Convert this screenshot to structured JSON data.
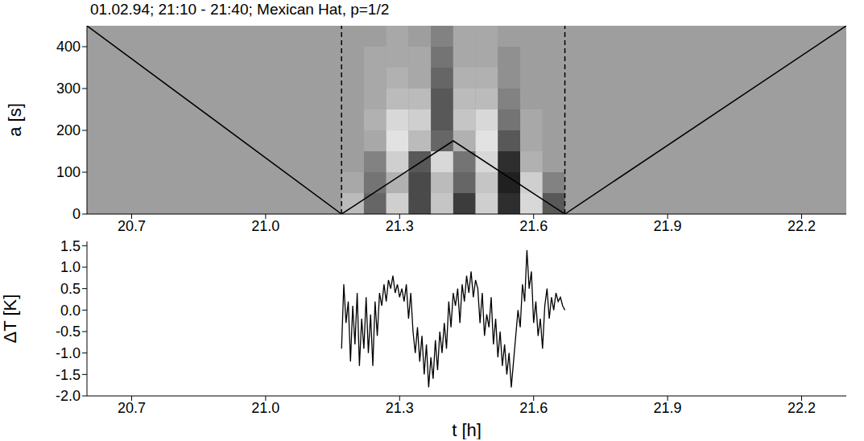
{
  "chart_data": [
    {
      "type": "heatmap",
      "title": "01.02.94; 21:10 - 21:40; Mexican Hat, p=1/2",
      "y_label": "a [s]",
      "xlim": [
        20.6,
        22.3
      ],
      "xticks": [
        20.7,
        {
          "value": 21,
          "label": "21.0"
        },
        21.3,
        21.6,
        21.9,
        22.2
      ],
      "ylim": [
        0,
        450
      ],
      "yticks": [
        0,
        100,
        200,
        300,
        400
      ],
      "x_edges": [
        21.17,
        21.22,
        21.27,
        21.32,
        21.37,
        21.42,
        21.47,
        21.52,
        21.57,
        21.62,
        21.67
      ],
      "y_edges": [
        0,
        50,
        100,
        150,
        200,
        250,
        300,
        350,
        400,
        450
      ],
      "cells": [
        [
          0.3,
          -0.4,
          0.5,
          -0.6,
          0.4,
          -0.7,
          0.5,
          -0.8,
          0.6,
          -0.5
        ],
        [
          0.1,
          -0.3,
          0.2,
          -0.6,
          0.3,
          -0.4,
          0.4,
          -0.9,
          0.5,
          -0.2
        ],
        [
          0.0,
          -0.2,
          0.5,
          -0.5,
          0.6,
          -0.3,
          0.6,
          -0.8,
          0.2,
          0.0
        ],
        [
          0.0,
          0.1,
          0.7,
          0.3,
          -0.4,
          0.2,
          0.7,
          -0.5,
          0.1,
          0.0
        ],
        [
          0.0,
          0.2,
          0.6,
          0.5,
          -0.5,
          0.4,
          0.6,
          -0.3,
          0.1,
          0.0
        ],
        [
          0.0,
          0.1,
          0.3,
          0.3,
          -0.5,
          0.3,
          0.3,
          -0.2,
          0.0,
          0.0
        ],
        [
          0.0,
          0.1,
          0.2,
          0.1,
          -0.4,
          0.2,
          0.2,
          -0.1,
          0.0,
          0.0
        ],
        [
          0.0,
          0.1,
          0.1,
          0.1,
          -0.3,
          0.1,
          0.1,
          -0.1,
          0.0,
          0.0
        ],
        [
          0.0,
          0.0,
          0.1,
          0.0,
          -0.2,
          0.1,
          0.1,
          0.0,
          0.0,
          0.0
        ]
      ],
      "zlim": [
        -1,
        1
      ],
      "lines": [
        {
          "x": [
            20.6,
            21.17,
            21.42,
            21.67,
            22.3
          ],
          "y": [
            450,
            0,
            175,
            0,
            450
          ],
          "color": "#000000",
          "line_style": "solid"
        },
        {
          "x": [
            21.17,
            21.17
          ],
          "y": [
            0,
            450
          ],
          "color": "#000000",
          "line_style": "dashed"
        },
        {
          "x": [
            21.67,
            21.67
          ],
          "y": [
            0,
            450
          ],
          "color": "#000000",
          "line_style": "dashed"
        }
      ]
    },
    {
      "type": "line",
      "x_label": "t [h]",
      "y_label": "ΔT [K]",
      "xlim": [
        20.6,
        22.3
      ],
      "xticks": [
        20.7,
        {
          "value": 21,
          "label": "21.0"
        },
        21.3,
        21.6,
        21.9,
        22.2
      ],
      "ylim": [
        -2,
        1.6
      ],
      "yticks": [
        {
          "value": -2,
          "label": "-2.0"
        },
        -1.5,
        {
          "value": -1,
          "label": "-1.0"
        },
        -0.5,
        {
          "value": 0,
          "label": "0.0"
        },
        0.5,
        {
          "value": 1,
          "label": "1.0"
        },
        1.5
      ],
      "color": "#000000",
      "x": [
        21.17,
        21.175,
        21.18,
        21.185,
        21.19,
        21.195,
        21.2,
        21.205,
        21.21,
        21.215,
        21.22,
        21.225,
        21.23,
        21.235,
        21.24,
        21.245,
        21.25,
        21.255,
        21.26,
        21.265,
        21.27,
        21.275,
        21.28,
        21.285,
        21.29,
        21.295,
        21.3,
        21.305,
        21.31,
        21.315,
        21.32,
        21.325,
        21.33,
        21.335,
        21.34,
        21.345,
        21.35,
        21.355,
        21.36,
        21.365,
        21.37,
        21.375,
        21.38,
        21.385,
        21.39,
        21.395,
        21.4,
        21.405,
        21.41,
        21.415,
        21.42,
        21.425,
        21.43,
        21.435,
        21.44,
        21.445,
        21.45,
        21.455,
        21.46,
        21.465,
        21.47,
        21.475,
        21.48,
        21.485,
        21.49,
        21.495,
        21.5,
        21.505,
        21.51,
        21.515,
        21.52,
        21.525,
        21.53,
        21.535,
        21.54,
        21.545,
        21.55,
        21.555,
        21.56,
        21.565,
        21.57,
        21.575,
        21.58,
        21.585,
        21.59,
        21.595,
        21.6,
        21.605,
        21.61,
        21.615,
        21.62,
        21.625,
        21.63,
        21.635,
        21.64,
        21.645,
        21.65,
        21.655,
        21.66,
        21.665,
        21.67
      ],
      "values": [
        -0.9,
        0.6,
        -0.3,
        0.2,
        -1.2,
        0.1,
        -0.8,
        0.4,
        -1.3,
        -0.2,
        -0.9,
        0.3,
        -1.0,
        -0.1,
        -1.3,
        0.2,
        -0.6,
        0.4,
        0.1,
        0.6,
        0.2,
        0.7,
        0.5,
        0.8,
        0.4,
        0.6,
        0.3,
        0.5,
        0.2,
        0.6,
        -0.2,
        0.4,
        -0.5,
        -1.0,
        -0.4,
        -1.2,
        -0.6,
        -1.5,
        -0.8,
        -1.8,
        -1.1,
        -1.6,
        -0.7,
        -1.4,
        -0.5,
        -1.0,
        -0.3,
        -0.9,
        0.2,
        -0.4,
        0.4,
        0.1,
        0.5,
        -0.3,
        0.6,
        0.2,
        0.8,
        0.4,
        0.9,
        0.3,
        0.7,
        0.5,
        -0.3,
        0.4,
        -0.6,
        -0.1,
        -0.4,
        0.3,
        -0.8,
        -0.2,
        -1.1,
        -0.5,
        -1.3,
        -0.8,
        -1.5,
        -1.0,
        -1.8,
        -1.2,
        -0.6,
        0.0,
        -0.4,
        0.6,
        0.2,
        1.4,
        0.5,
        0.9,
        -0.3,
        0.2,
        -0.6,
        -0.2,
        -0.9,
        0.1,
        0.5,
        -0.2,
        0.3,
        0.0,
        0.4,
        0.2,
        0.3,
        0.1,
        0.0
      ]
    }
  ]
}
